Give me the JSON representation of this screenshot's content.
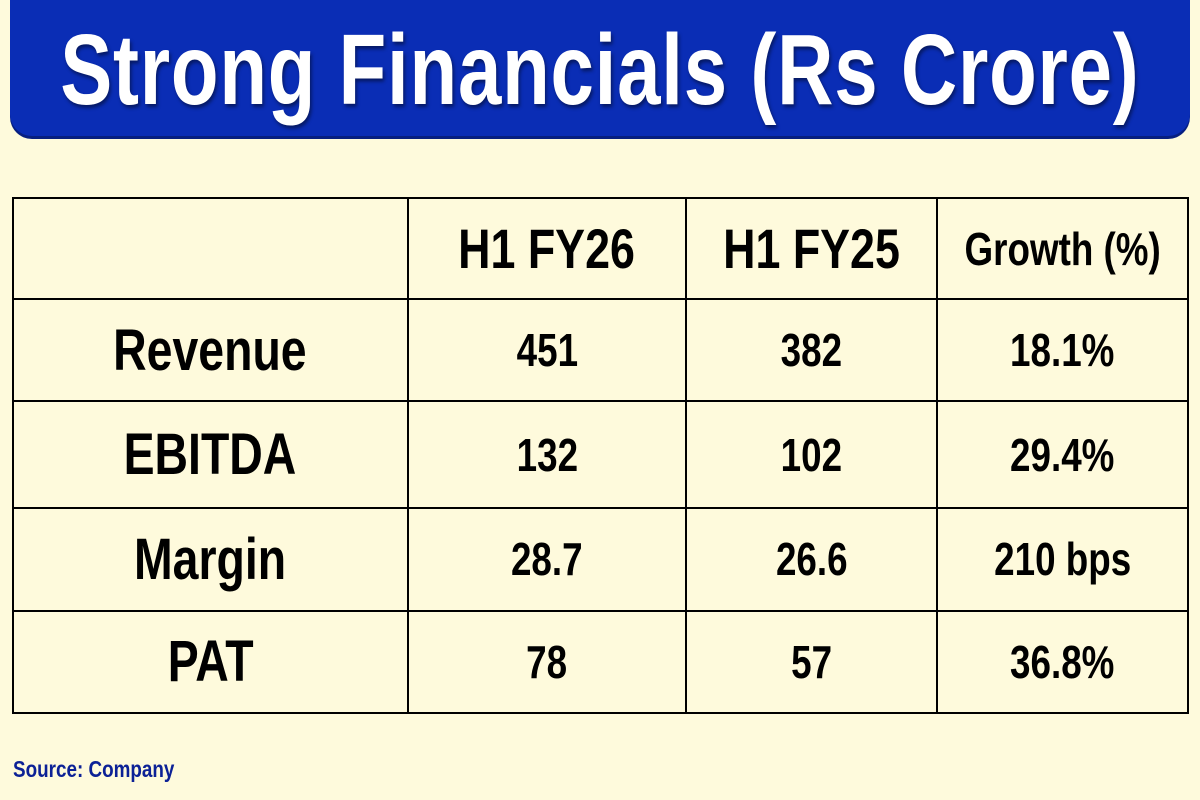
{
  "title": "Strong Financials (Rs Crore)",
  "colors": {
    "banner": "#0a2db5",
    "background": "#fefadc",
    "source_text": "#0c2196"
  },
  "chart_data": {
    "type": "table",
    "columns": [
      "",
      "H1 FY26",
      "H1 FY25",
      "Growth (%)"
    ],
    "rows": [
      {
        "label": "Revenue",
        "values": [
          "451",
          "382",
          "18.1%"
        ]
      },
      {
        "label": "EBITDA",
        "values": [
          "132",
          "102",
          "29.4%"
        ]
      },
      {
        "label": "Margin",
        "values": [
          "28.7",
          "26.6",
          "210 bps"
        ]
      },
      {
        "label": "PAT",
        "values": [
          "78",
          "57",
          "36.8%"
        ]
      }
    ]
  },
  "source": "Source: Company"
}
